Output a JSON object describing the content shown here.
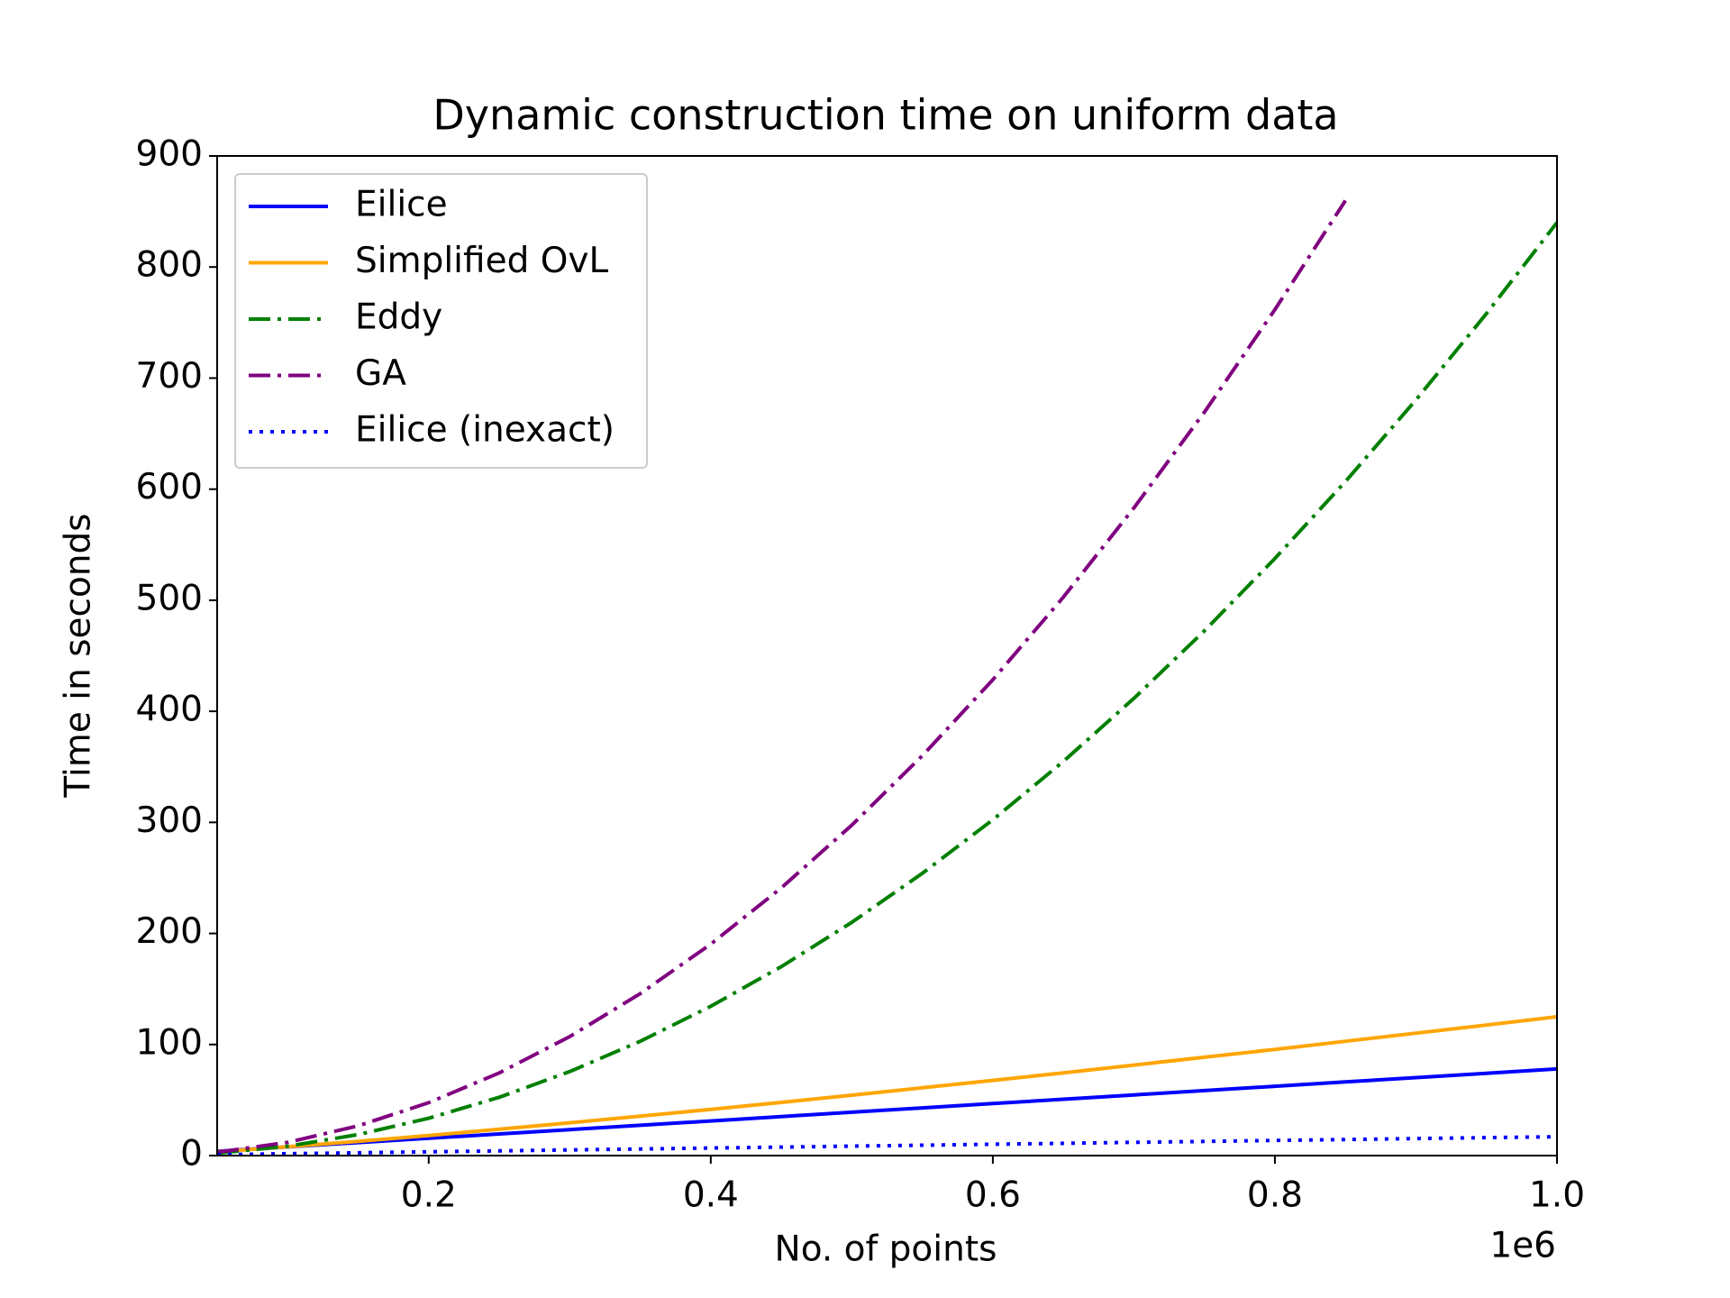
{
  "chart_data": {
    "type": "line",
    "title": "Dynamic construction time on uniform data",
    "xlabel": "No. of points",
    "ylabel": "Time in seconds",
    "x_offset_label": "1e6",
    "x": [
      0.05,
      0.1,
      0.15,
      0.2,
      0.25,
      0.3,
      0.35,
      0.4,
      0.45,
      0.5,
      0.55,
      0.6,
      0.65,
      0.7,
      0.75,
      0.8,
      0.85,
      0.9,
      0.95,
      1.0
    ],
    "series": [
      {
        "name": "Eilice",
        "color": "#0000ff",
        "linestyle": "solid",
        "values": [
          3.9,
          7.8,
          11.7,
          15.6,
          19.5,
          23.4,
          27.3,
          31.2,
          35.1,
          39,
          42.9,
          46.8,
          50.7,
          54.6,
          58.5,
          62.4,
          66.3,
          70.2,
          74.1,
          78
        ]
      },
      {
        "name": "Simplified OvL",
        "color": "#ffa500",
        "linestyle": "solid",
        "values": [
          3.4,
          7.9,
          12.8,
          18.1,
          23.7,
          29.5,
          35.5,
          41.6,
          47.9,
          54.4,
          61.0,
          67.7,
          74.5,
          81.5,
          88.5,
          95.6,
          102.9,
          110.2,
          117.5,
          125
        ]
      },
      {
        "name": "Eddy",
        "color": "#008000",
        "linestyle": "dashdot",
        "values": [
          2.1,
          8.4,
          18.9,
          33.6,
          52.5,
          75.6,
          102.9,
          134.4,
          170.1,
          210,
          254.1,
          302.4,
          354.9,
          411.6,
          472.5,
          537.6,
          606.9,
          680.4,
          758.1,
          840
        ]
      },
      {
        "name": "GA",
        "color": "#800080",
        "linestyle": "dashdot",
        "values": [
          3.0,
          11.9,
          26.8,
          47.6,
          74.4,
          107.1,
          145.8,
          190.4,
          241.0,
          297.5,
          360.0,
          428.4,
          502.8,
          583.1,
          669.4,
          761.6,
          859.8,
          null,
          null,
          null
        ]
      },
      {
        "name": "Eilice (inexact)",
        "color": "#0000ff",
        "linestyle": "dotted",
        "values": [
          0.85,
          1.7,
          2.55,
          3.4,
          4.25,
          5.1,
          5.95,
          6.8,
          7.65,
          8.5,
          9.35,
          10.2,
          11.05,
          11.9,
          12.75,
          13.6,
          14.45,
          15.3,
          16.15,
          17
        ]
      }
    ],
    "xlim": [
      0.05,
      1.0
    ],
    "xticks": [
      0.2,
      0.4,
      0.6,
      0.8,
      {
        "value": 1.0,
        "label": "1.0"
      }
    ],
    "ylim": [
      0,
      900
    ],
    "yticks": [
      0,
      100,
      200,
      300,
      400,
      500,
      600,
      700,
      800,
      900
    ],
    "grid": false,
    "legend": "upper left"
  }
}
